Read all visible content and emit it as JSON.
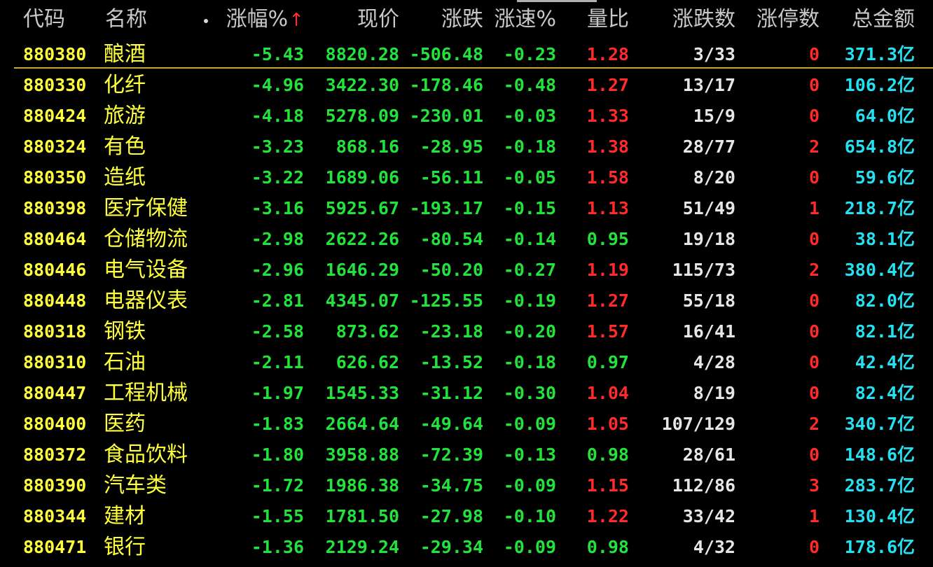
{
  "header": {
    "code": "代码",
    "name": "名称",
    "pct": "涨幅%",
    "price": "现价",
    "change": "涨跌",
    "speed": "涨速%",
    "volume_ratio": "量比",
    "up_down": "涨跌数",
    "limit_up": "涨停数",
    "amount": "总金额",
    "sort_arrow": "↑"
  },
  "rows": [
    {
      "code": "880380",
      "name": "酿酒",
      "pct": "-5.43",
      "price": "8820.28",
      "change": "-506.48",
      "speed": "-0.23",
      "ratio": "1.28",
      "ud": "3/33",
      "lim": "0",
      "amt": "371.3亿"
    },
    {
      "code": "880330",
      "name": "化纤",
      "pct": "-4.96",
      "price": "3422.30",
      "change": "-178.46",
      "speed": "-0.48",
      "ratio": "1.27",
      "ud": "13/17",
      "lim": "0",
      "amt": "106.2亿"
    },
    {
      "code": "880424",
      "name": "旅游",
      "pct": "-4.18",
      "price": "5278.09",
      "change": "-230.01",
      "speed": "-0.03",
      "ratio": "1.33",
      "ud": "15/9",
      "lim": "0",
      "amt": "64.0亿"
    },
    {
      "code": "880324",
      "name": "有色",
      "pct": "-3.23",
      "price": "868.16",
      "change": "-28.95",
      "speed": "-0.18",
      "ratio": "1.38",
      "ud": "28/77",
      "lim": "2",
      "amt": "654.8亿"
    },
    {
      "code": "880350",
      "name": "造纸",
      "pct": "-3.22",
      "price": "1689.06",
      "change": "-56.11",
      "speed": "-0.05",
      "ratio": "1.58",
      "ud": "8/20",
      "lim": "0",
      "amt": "59.6亿"
    },
    {
      "code": "880398",
      "name": "医疗保健",
      "pct": "-3.16",
      "price": "5925.67",
      "change": "-193.17",
      "speed": "-0.15",
      "ratio": "1.13",
      "ud": "51/49",
      "lim": "1",
      "amt": "218.7亿"
    },
    {
      "code": "880464",
      "name": "仓储物流",
      "pct": "-2.98",
      "price": "2622.26",
      "change": "-80.54",
      "speed": "-0.14",
      "ratio": "0.95",
      "ud": "19/18",
      "lim": "0",
      "amt": "38.1亿"
    },
    {
      "code": "880446",
      "name": "电气设备",
      "pct": "-2.96",
      "price": "1646.29",
      "change": "-50.20",
      "speed": "-0.27",
      "ratio": "1.19",
      "ud": "115/73",
      "lim": "2",
      "amt": "380.4亿"
    },
    {
      "code": "880448",
      "name": "电器仪表",
      "pct": "-2.81",
      "price": "4345.07",
      "change": "-125.55",
      "speed": "-0.19",
      "ratio": "1.27",
      "ud": "55/18",
      "lim": "0",
      "amt": "82.0亿"
    },
    {
      "code": "880318",
      "name": "钢铁",
      "pct": "-2.58",
      "price": "873.62",
      "change": "-23.18",
      "speed": "-0.20",
      "ratio": "1.57",
      "ud": "16/41",
      "lim": "0",
      "amt": "82.1亿"
    },
    {
      "code": "880310",
      "name": "石油",
      "pct": "-2.11",
      "price": "626.62",
      "change": "-13.52",
      "speed": "-0.18",
      "ratio": "0.97",
      "ud": "4/28",
      "lim": "0",
      "amt": "42.4亿"
    },
    {
      "code": "880447",
      "name": "工程机械",
      "pct": "-1.97",
      "price": "1545.33",
      "change": "-31.12",
      "speed": "-0.30",
      "ratio": "1.04",
      "ud": "8/19",
      "lim": "0",
      "amt": "82.4亿"
    },
    {
      "code": "880400",
      "name": "医药",
      "pct": "-1.83",
      "price": "2664.64",
      "change": "-49.64",
      "speed": "-0.09",
      "ratio": "1.05",
      "ud": "107/129",
      "lim": "2",
      "amt": "340.7亿"
    },
    {
      "code": "880372",
      "name": "食品饮料",
      "pct": "-1.80",
      "price": "3958.88",
      "change": "-72.39",
      "speed": "-0.13",
      "ratio": "0.98",
      "ud": "28/61",
      "lim": "0",
      "amt": "148.6亿"
    },
    {
      "code": "880390",
      "name": "汽车类",
      "pct": "-1.72",
      "price": "1986.38",
      "change": "-34.75",
      "speed": "-0.09",
      "ratio": "1.15",
      "ud": "112/86",
      "lim": "3",
      "amt": "283.7亿"
    },
    {
      "code": "880344",
      "name": "建材",
      "pct": "-1.55",
      "price": "1781.50",
      "change": "-27.98",
      "speed": "-0.10",
      "ratio": "1.22",
      "ud": "33/42",
      "lim": "1",
      "amt": "130.4亿"
    },
    {
      "code": "880471",
      "name": "银行",
      "pct": "-1.36",
      "price": "2129.24",
      "change": "-29.34",
      "speed": "-0.09",
      "ratio": "0.98",
      "ud": "4/32",
      "lim": "0",
      "amt": "178.6亿"
    }
  ],
  "colors": {
    "background": "#000000",
    "code_name": "#ffff3c",
    "down": "#22e33c",
    "up": "#ff2a2a",
    "neutral": "#e6e6e6",
    "amount": "#25e0f0",
    "selected_line": "#c9a733"
  }
}
